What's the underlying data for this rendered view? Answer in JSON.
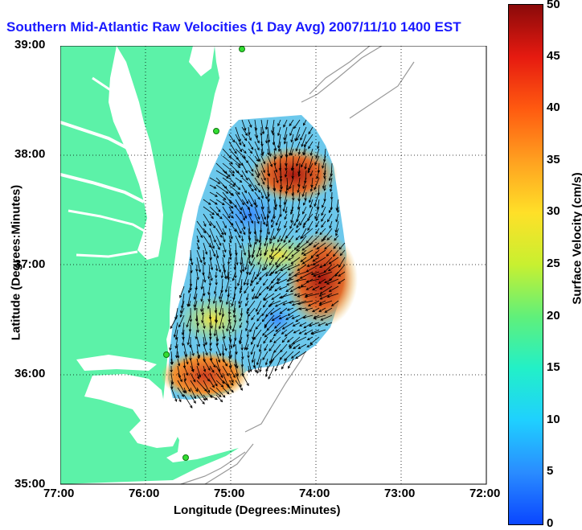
{
  "map": {
    "title": "Southern Mid-Atlantic Raw Velocities (1 Day Avg) 2007/11/10 1400 EST",
    "xlabel": "Longitude (Degrees:Minutes)",
    "ylabel": "Latitude (Degrees:Minutes)",
    "lon_ticks": [
      "77:00",
      "76:00",
      "75:00",
      "74:00",
      "73:00",
      "72:00"
    ],
    "lat_ticks": [
      "39:00",
      "38:00",
      "37:00",
      "36:00",
      "35:00"
    ],
    "lon_range": [
      -77,
      -72
    ],
    "lat_range": [
      35,
      39
    ],
    "colors": {
      "land": "#5cf2a8",
      "water": "#ffffff",
      "station": "#33dd33",
      "vectors": "#000000",
      "bathymetry": "#999999"
    }
  },
  "colorbar": {
    "label": "Surface Velocity (cm/s)",
    "ticks": [
      "0",
      "5",
      "10",
      "15",
      "20",
      "25",
      "30",
      "35",
      "40",
      "45",
      "50"
    ],
    "range": [
      0,
      50
    ]
  }
}
